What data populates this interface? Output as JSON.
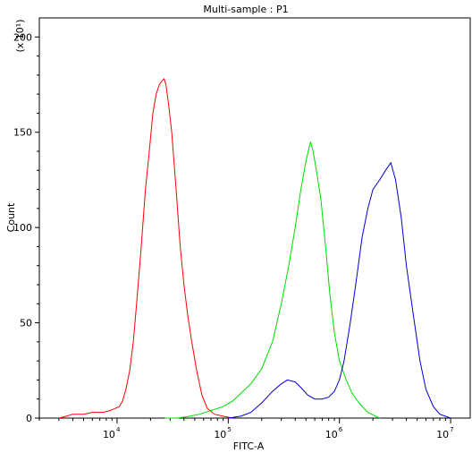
{
  "chart_data": {
    "type": "line",
    "title": "Multi-sample : P1",
    "xlabel": "FITC-A",
    "ylabel": "Count",
    "y_scale_note": "(x 10¹)",
    "x_scale": "log",
    "xlim": [
      2000,
      15000000
    ],
    "ylim": [
      0,
      210
    ],
    "x_ticks": [
      {
        "value": 10000,
        "base": "10",
        "exp": "4"
      },
      {
        "value": 100000,
        "base": "10",
        "exp": "5"
      },
      {
        "value": 1000000,
        "base": "10",
        "exp": "6"
      },
      {
        "value": 10000000,
        "base": "10",
        "exp": "7"
      }
    ],
    "y_ticks": [
      0,
      50,
      100,
      150,
      200
    ],
    "series": [
      {
        "color": "#ff0000",
        "points": [
          [
            3000,
            0
          ],
          [
            3500,
            1
          ],
          [
            4000,
            2
          ],
          [
            5000,
            2
          ],
          [
            6000,
            3
          ],
          [
            7500,
            3
          ],
          [
            8700,
            4
          ],
          [
            9500,
            5
          ],
          [
            10500,
            6
          ],
          [
            11200,
            9
          ],
          [
            12000,
            15
          ],
          [
            13000,
            25
          ],
          [
            14000,
            40
          ],
          [
            15000,
            60
          ],
          [
            16500,
            90
          ],
          [
            18000,
            120
          ],
          [
            19500,
            140
          ],
          [
            21000,
            160
          ],
          [
            22500,
            170
          ],
          [
            24000,
            175
          ],
          [
            25500,
            177
          ],
          [
            26500,
            178
          ],
          [
            27500,
            175
          ],
          [
            29000,
            165
          ],
          [
            31000,
            150
          ],
          [
            34000,
            120
          ],
          [
            37000,
            90
          ],
          [
            40000,
            70
          ],
          [
            43000,
            55
          ],
          [
            47000,
            40
          ],
          [
            52000,
            25
          ],
          [
            58000,
            12
          ],
          [
            65000,
            5
          ],
          [
            75000,
            2
          ],
          [
            90000,
            1
          ],
          [
            110000,
            0
          ]
        ]
      },
      {
        "color": "#00dd00",
        "points": [
          [
            27000,
            0
          ],
          [
            35000,
            0
          ],
          [
            45000,
            1
          ],
          [
            55000,
            2
          ],
          [
            70000,
            4
          ],
          [
            90000,
            6
          ],
          [
            110000,
            9
          ],
          [
            130000,
            13
          ],
          [
            160000,
            18
          ],
          [
            200000,
            26
          ],
          [
            250000,
            40
          ],
          [
            300000,
            60
          ],
          [
            350000,
            80
          ],
          [
            400000,
            100
          ],
          [
            450000,
            120
          ],
          [
            500000,
            135
          ],
          [
            550000,
            145
          ],
          [
            580000,
            140
          ],
          [
            620000,
            130
          ],
          [
            680000,
            115
          ],
          [
            750000,
            90
          ],
          [
            820000,
            65
          ],
          [
            900000,
            45
          ],
          [
            1000000,
            30
          ],
          [
            1150000,
            20
          ],
          [
            1300000,
            13
          ],
          [
            1500000,
            8
          ],
          [
            1800000,
            3
          ],
          [
            2300000,
            0
          ]
        ]
      },
      {
        "color": "#0000cc",
        "points": [
          [
            100000,
            0
          ],
          [
            130000,
            1
          ],
          [
            160000,
            3
          ],
          [
            200000,
            8
          ],
          [
            250000,
            14
          ],
          [
            300000,
            18
          ],
          [
            340000,
            20
          ],
          [
            400000,
            19
          ],
          [
            450000,
            16
          ],
          [
            520000,
            12
          ],
          [
            600000,
            10
          ],
          [
            700000,
            10
          ],
          [
            800000,
            11
          ],
          [
            900000,
            14
          ],
          [
            1000000,
            20
          ],
          [
            1100000,
            30
          ],
          [
            1250000,
            50
          ],
          [
            1400000,
            70
          ],
          [
            1600000,
            95
          ],
          [
            1800000,
            110
          ],
          [
            2000000,
            120
          ],
          [
            2300000,
            125
          ],
          [
            2600000,
            130
          ],
          [
            2900000,
            134
          ],
          [
            3200000,
            125
          ],
          [
            3600000,
            105
          ],
          [
            4000000,
            80
          ],
          [
            4600000,
            55
          ],
          [
            5300000,
            30
          ],
          [
            6000000,
            15
          ],
          [
            7000000,
            6
          ],
          [
            8000000,
            2
          ],
          [
            10000000,
            0
          ]
        ]
      }
    ]
  }
}
